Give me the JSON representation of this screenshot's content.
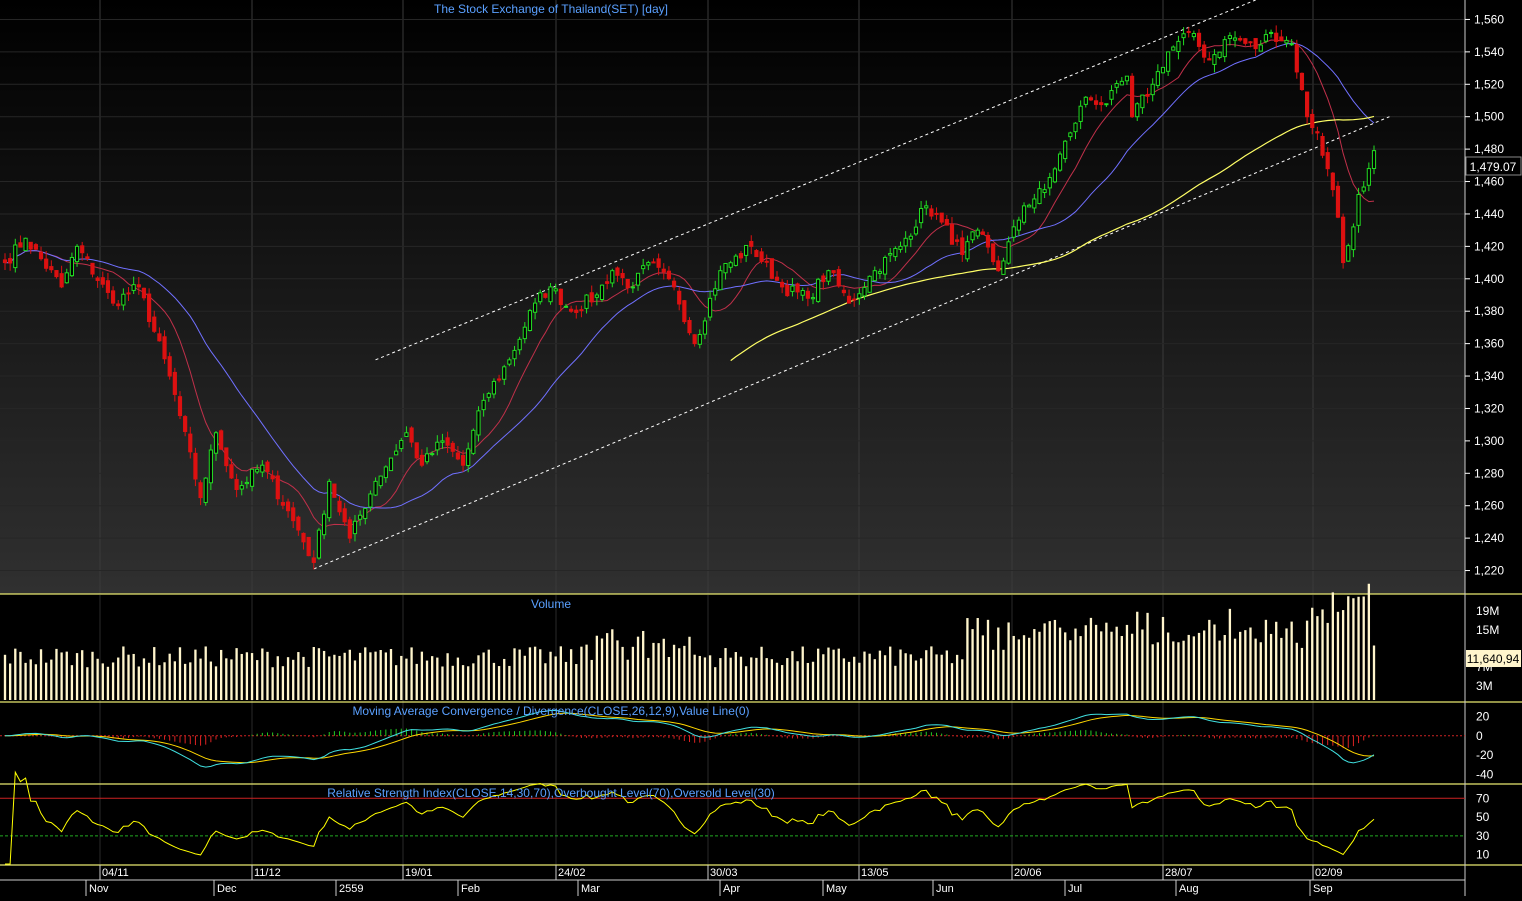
{
  "panels": {
    "price_title": "The Stock Exchange of Thailand(SET) [day]",
    "volume_title": "Volume",
    "macd_title": "Moving Average Convergence / Divergence(CLOSE,26,12,9),Value Line(0)",
    "rsi_title": "Relative Strength Index(CLOSE,14,30,70),Overbought Level(70),Oversold Level(30)"
  },
  "labels": {
    "last_price": "1,479.07",
    "last_volume": "11,640,94"
  },
  "axes": {
    "price_ticks": [
      "1,220",
      "1,240",
      "1,260",
      "1,280",
      "1,300",
      "1,320",
      "1,340",
      "1,360",
      "1,380",
      "1,400",
      "1,420",
      "1,440",
      "1,460",
      "1,480",
      "1,500",
      "1,520",
      "1,540",
      "1,560"
    ],
    "price_tick_values": [
      1220,
      1240,
      1260,
      1280,
      1300,
      1320,
      1340,
      1360,
      1380,
      1400,
      1420,
      1440,
      1460,
      1480,
      1500,
      1520,
      1540,
      1560
    ],
    "volume_ticks": [
      "19M",
      "15M",
      "7M",
      "3M"
    ],
    "macd_ticks": [
      "20",
      "0",
      "-20",
      "-40"
    ],
    "rsi_ticks": [
      "70",
      "50",
      "30",
      "10"
    ],
    "date_labels": [
      "04/11",
      "11/12",
      "19/01",
      "24/02",
      "30/03",
      "13/05",
      "20/06",
      "28/07",
      "02/09"
    ],
    "month_labels": [
      "Nov",
      "Dec",
      "2559",
      "Feb",
      "Mar",
      "Apr",
      "May",
      "Jun",
      "Jul",
      "Aug",
      "Sep"
    ]
  },
  "colors": {
    "background": "#000000",
    "up_candle": "#22dd22",
    "down_candle": "#dd1111",
    "sma_short": "#c0304a",
    "sma_mid": "#7070ff",
    "sma_long": "#ffff66",
    "volume": "#fff5cc",
    "macd_line": "#40e0e0",
    "signal_line": "#ffd700",
    "rsi_line": "#ffff00",
    "title_text": "#5aa0ff",
    "axis_text": "#ffffff"
  },
  "chart_data": {
    "type": "candlestick",
    "title": "The Stock Exchange of Thailand(SET) [day]",
    "period": "day",
    "price_range": [
      1208,
      1572
    ],
    "last_close": 1479.07,
    "anchors": [
      {
        "date": "2015-10-20",
        "close": 1410
      },
      {
        "date": "2015-10-26",
        "close": 1425
      },
      {
        "date": "2015-11-04",
        "close": 1395
      },
      {
        "date": "2015-11-09",
        "close": 1420
      },
      {
        "date": "2015-11-18",
        "close": 1385
      },
      {
        "date": "2015-11-25",
        "close": 1395
      },
      {
        "date": "2015-12-03",
        "close": 1340
      },
      {
        "date": "2015-12-11",
        "close": 1265
      },
      {
        "date": "2015-12-16",
        "close": 1305
      },
      {
        "date": "2015-12-22",
        "close": 1270
      },
      {
        "date": "2015-12-29",
        "close": 1285
      },
      {
        "date": "2016-01-07",
        "close": 1245
      },
      {
        "date": "2016-01-12",
        "close": 1225
      },
      {
        "date": "2016-01-15",
        "close": 1275
      },
      {
        "date": "2016-01-21",
        "close": 1240
      },
      {
        "date": "2016-01-28",
        "close": 1275
      },
      {
        "date": "2016-02-05",
        "close": 1305
      },
      {
        "date": "2016-02-10",
        "close": 1285
      },
      {
        "date": "2016-02-16",
        "close": 1300
      },
      {
        "date": "2016-02-22",
        "close": 1285
      },
      {
        "date": "2016-02-26",
        "close": 1325
      },
      {
        "date": "2016-03-04",
        "close": 1350
      },
      {
        "date": "2016-03-11",
        "close": 1385
      },
      {
        "date": "2016-03-16",
        "close": 1395
      },
      {
        "date": "2016-03-22",
        "close": 1380
      },
      {
        "date": "2016-03-29",
        "close": 1390
      },
      {
        "date": "2016-04-01",
        "close": 1405
      },
      {
        "date": "2016-04-07",
        "close": 1395
      },
      {
        "date": "2016-04-12",
        "close": 1410
      },
      {
        "date": "2016-04-19",
        "close": 1395
      },
      {
        "date": "2016-04-25",
        "close": 1360
      },
      {
        "date": "2016-05-02",
        "close": 1405
      },
      {
        "date": "2016-05-10",
        "close": 1420
      },
      {
        "date": "2016-05-18",
        "close": 1395
      },
      {
        "date": "2016-05-25",
        "close": 1388
      },
      {
        "date": "2016-05-31",
        "close": 1405
      },
      {
        "date": "2016-06-06",
        "close": 1385
      },
      {
        "date": "2016-06-13",
        "close": 1405
      },
      {
        "date": "2016-06-20",
        "close": 1420
      },
      {
        "date": "2016-06-27",
        "close": 1445
      },
      {
        "date": "2016-06-30",
        "close": 1435
      },
      {
        "date": "2016-07-06",
        "close": 1415
      },
      {
        "date": "2016-07-11",
        "close": 1430
      },
      {
        "date": "2016-07-15",
        "close": 1405
      },
      {
        "date": "2016-07-22",
        "close": 1445
      },
      {
        "date": "2016-07-28",
        "close": 1455
      },
      {
        "date": "2016-08-04",
        "close": 1490
      },
      {
        "date": "2016-08-09",
        "close": 1512
      },
      {
        "date": "2016-08-15",
        "close": 1508
      },
      {
        "date": "2016-08-19",
        "close": 1525
      },
      {
        "date": "2016-08-22",
        "close": 1500
      },
      {
        "date": "2016-08-26",
        "close": 1520
      },
      {
        "date": "2016-08-31",
        "close": 1540
      },
      {
        "date": "2016-09-06",
        "close": 1552
      },
      {
        "date": "2016-09-12",
        "close": 1535
      },
      {
        "date": "2016-09-16",
        "close": 1550
      },
      {
        "date": "2016-09-23",
        "close": 1542
      },
      {
        "date": "2016-09-28",
        "close": 1552
      },
      {
        "date": "2016-10-04",
        "close": 1545
      },
      {
        "date": "2016-10-07",
        "close": 1500
      },
      {
        "date": "2016-10-11",
        "close": 1490
      },
      {
        "date": "2016-10-14",
        "close": 1455
      },
      {
        "date": "2016-10-17",
        "close": 1438
      },
      {
        "date": "2016-10-18",
        "close": 1410
      },
      {
        "date": "2016-10-20",
        "close": 1432
      },
      {
        "date": "2016-10-21",
        "close": 1452
      },
      {
        "date": "2016-10-25",
        "close": 1468
      },
      {
        "date": "2016-10-26",
        "close": 1479.07
      }
    ],
    "moving_averages": [
      {
        "name": "short",
        "color": "#c0304a"
      },
      {
        "name": "mid",
        "color": "#7070ff"
      },
      {
        "name": "long",
        "color": "#ffff66"
      }
    ],
    "trend_channel": {
      "upper": [
        {
          "date": "2016-01-28",
          "price": 1350
        },
        {
          "date": "2016-09-23",
          "price": 1572
        }
      ],
      "lower": [
        {
          "date": "2016-01-12",
          "price": 1221
        },
        {
          "date": "2016-10-31",
          "price": 1500
        }
      ]
    },
    "volume": {
      "unit": "M",
      "range": [
        0,
        22
      ],
      "last": 11.64
    },
    "macd": {
      "params": "CLOSE,26,12,9",
      "range": [
        -48,
        32
      ],
      "value_line": 0
    },
    "rsi": {
      "period": 14,
      "overbought": 70,
      "oversold": 30,
      "range": [
        0,
        82
      ]
    }
  }
}
